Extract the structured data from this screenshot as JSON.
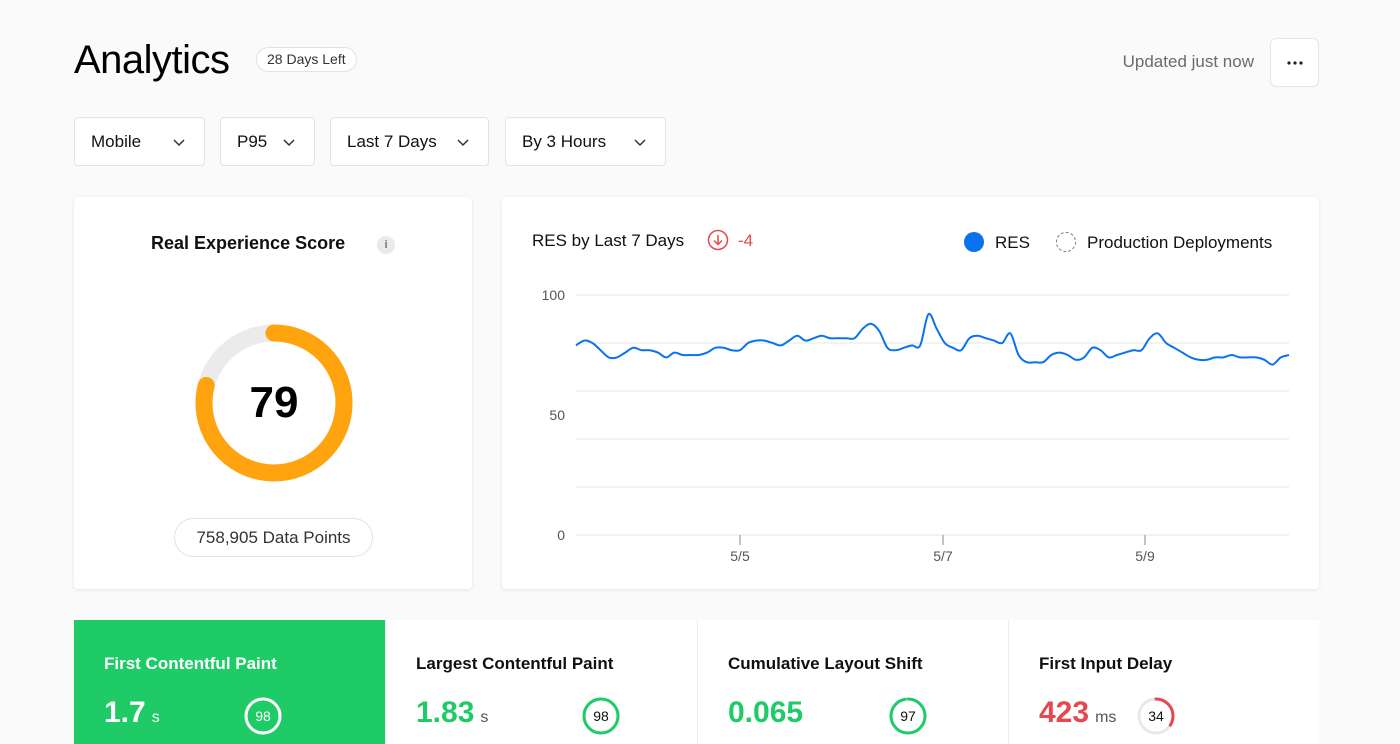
{
  "header": {
    "title": "Analytics",
    "badge": "28 Days Left",
    "updated": "Updated just now",
    "more_icon": "more-horizontal-icon"
  },
  "filters": [
    {
      "label": "Mobile"
    },
    {
      "label": "P95"
    },
    {
      "label": "Last 7 Days"
    },
    {
      "label": "By 3 Hours"
    }
  ],
  "score_card": {
    "title": "Real Experience Score",
    "info_icon": "i",
    "score": "79",
    "score_fraction": 0.79,
    "data_points": "758,905 Data Points",
    "ring_color": "#ffa30f",
    "ring_track_color": "#ebebeb"
  },
  "chart_card": {
    "title": "RES by Last 7 Days",
    "delta": "-4",
    "delta_color": "#e5484d",
    "legend": {
      "res": "RES",
      "deployments": "Production Deployments"
    },
    "line_color": "#0a72ef"
  },
  "chart_data": {
    "type": "line",
    "y_ticks": [
      "100",
      "50",
      "0"
    ],
    "x_ticks": [
      "5/5",
      "5/7",
      "5/9"
    ],
    "ylim": [
      0,
      100
    ],
    "grid": true,
    "legend_placement": "top-right",
    "series": [
      {
        "name": "RES",
        "color": "#0a72ef",
        "values": [
          79,
          81,
          80,
          77,
          74,
          74,
          76,
          78,
          77,
          77,
          76,
          74,
          76,
          75,
          75,
          75,
          76,
          78,
          78,
          77,
          77,
          80,
          81,
          81,
          80,
          79,
          81,
          83,
          81,
          82,
          83,
          82,
          82,
          82,
          82,
          86,
          88,
          85,
          78,
          77,
          78,
          79,
          79,
          92,
          86,
          80,
          78,
          77,
          82,
          83,
          82,
          81,
          80,
          84,
          75,
          72,
          72,
          72,
          75,
          76,
          75,
          73,
          74,
          78,
          77,
          74,
          75,
          76,
          77,
          77,
          82,
          84,
          80,
          78,
          76,
          74,
          73,
          73,
          74,
          74,
          75,
          74,
          74,
          74,
          73,
          71,
          74,
          75
        ]
      }
    ]
  },
  "metrics": [
    {
      "title": "First Contentful Paint",
      "value": "1.7",
      "unit": "s",
      "score": "98",
      "score_fraction": 0.98,
      "status": "good",
      "value_color": "#ffffff",
      "ring_color": "#ffffff"
    },
    {
      "title": "Largest Contentful Paint",
      "value": "1.83",
      "unit": "s",
      "score": "98",
      "score_fraction": 0.98,
      "status": "good",
      "value_color": "#1ecb66",
      "ring_color": "#1ecb66"
    },
    {
      "title": "Cumulative Layout Shift",
      "value": "0.065",
      "unit": "",
      "score": "97",
      "score_fraction": 0.97,
      "status": "good",
      "value_color": "#1ecb66",
      "ring_color": "#1ecb66"
    },
    {
      "title": "First Input Delay",
      "value": "423",
      "unit": "ms",
      "score": "34",
      "score_fraction": 0.34,
      "status": "poor",
      "value_color": "#e5484d",
      "ring_color": "#e5484d"
    }
  ]
}
